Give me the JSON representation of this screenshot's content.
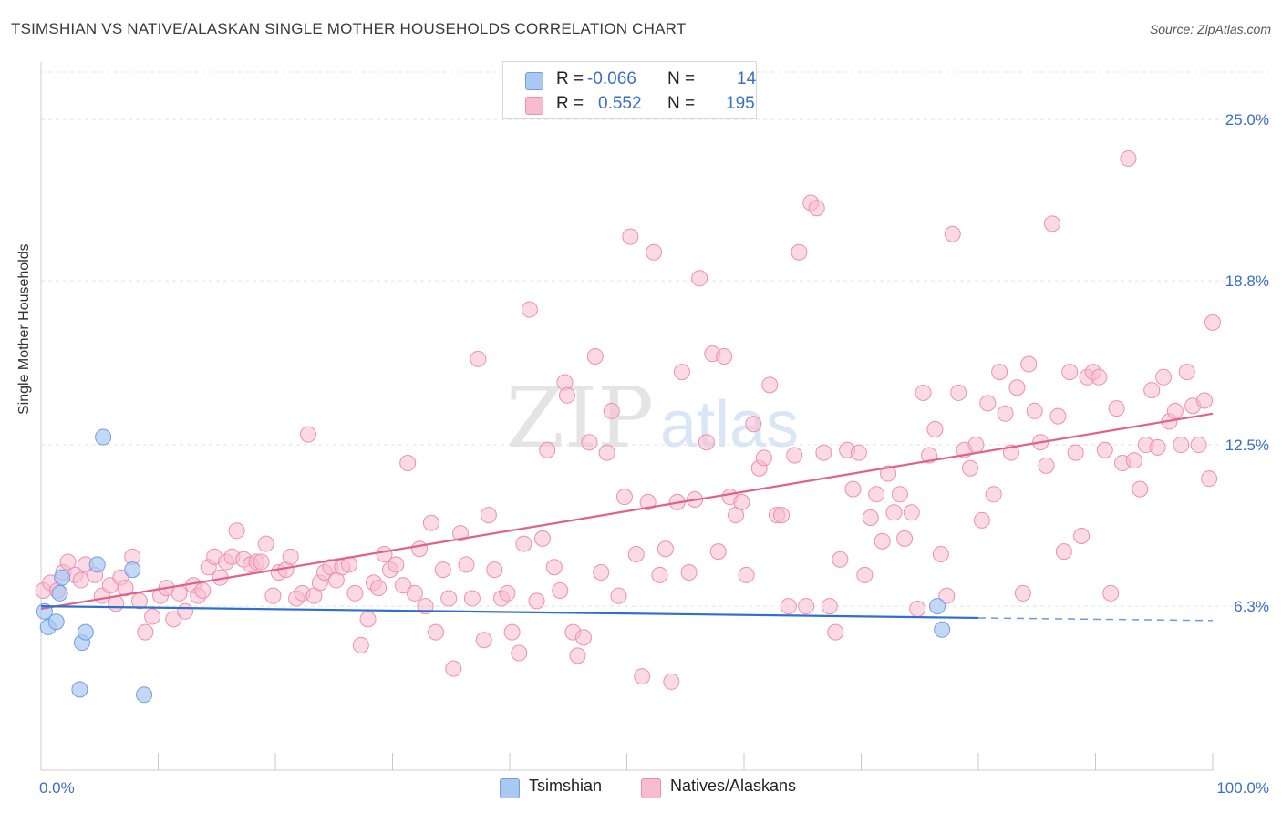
{
  "chart_data": {
    "type": "scatter",
    "title": "TSIMSHIAN VS NATIVE/ALASKAN SINGLE MOTHER HOUSEHOLDS CORRELATION CHART",
    "source": "Source: ZipAtlas.com",
    "ylabel": "Single Mother Households",
    "xlim": [
      0,
      100
    ],
    "ylim": [
      0,
      27
    ],
    "x_tick_labels": [
      "0.0%",
      "100.0%"
    ],
    "y_ticks": [
      {
        "value": 6.3,
        "label": "6.3%"
      },
      {
        "value": 12.5,
        "label": "12.5%"
      },
      {
        "value": 18.8,
        "label": "18.8%"
      },
      {
        "value": 25.0,
        "label": "25.0%"
      }
    ],
    "grid": true,
    "legend": {
      "placement": "top-center",
      "rows": [
        {
          "r_label": "R =",
          "r_value": "-0.066",
          "n_label": "N =",
          "n_value": "14"
        },
        {
          "r_label": "R =",
          "r_value": "0.552",
          "n_label": "N =",
          "n_value": "195"
        }
      ]
    },
    "colors": {
      "tsimshian_fill": "#a9c8f2",
      "tsimshian_stroke": "#6f9fe0",
      "tsimshian_line": "#2f6fcf",
      "natives_fill": "#f7bcd0",
      "natives_stroke": "#ee8fb0",
      "natives_line": "#e0608f",
      "tick_label": "#3a6fc4"
    },
    "series": [
      {
        "name": "Tsimshian",
        "trend": {
          "x0": 0,
          "y0": 6.3,
          "x1": 80,
          "y1": 5.85,
          "dash_to": 100,
          "dash_y": 5.75
        },
        "points": [
          [
            0.3,
            6.1
          ],
          [
            0.6,
            5.5
          ],
          [
            1.3,
            5.7
          ],
          [
            1.6,
            6.8
          ],
          [
            1.8,
            7.4
          ],
          [
            3.3,
            3.1
          ],
          [
            3.5,
            4.9
          ],
          [
            3.8,
            5.3
          ],
          [
            4.8,
            7.9
          ],
          [
            5.3,
            12.8
          ],
          [
            7.8,
            7.7
          ],
          [
            8.8,
            2.9
          ],
          [
            76.5,
            6.3
          ],
          [
            76.9,
            5.4
          ]
        ]
      },
      {
        "name": "Natives/Alaskans",
        "trend": {
          "x0": 0,
          "y0": 6.2,
          "x1": 100,
          "y1": 13.7
        },
        "points": [
          [
            0.2,
            6.9
          ],
          [
            0.8,
            7.2
          ],
          [
            1.4,
            6.9
          ],
          [
            1.9,
            7.6
          ],
          [
            2.3,
            8.0
          ],
          [
            2.9,
            7.5
          ],
          [
            3.4,
            7.3
          ],
          [
            3.8,
            7.9
          ],
          [
            4.6,
            7.5
          ],
          [
            5.2,
            6.7
          ],
          [
            5.9,
            7.1
          ],
          [
            6.4,
            6.4
          ],
          [
            6.8,
            7.4
          ],
          [
            7.2,
            7.0
          ],
          [
            7.8,
            8.2
          ],
          [
            8.4,
            6.5
          ],
          [
            8.9,
            5.3
          ],
          [
            9.5,
            5.9
          ],
          [
            10.2,
            6.7
          ],
          [
            10.7,
            7.0
          ],
          [
            11.3,
            5.8
          ],
          [
            11.8,
            6.8
          ],
          [
            12.3,
            6.1
          ],
          [
            13.0,
            7.1
          ],
          [
            13.4,
            6.7
          ],
          [
            13.8,
            6.9
          ],
          [
            14.3,
            7.8
          ],
          [
            14.8,
            8.2
          ],
          [
            15.3,
            7.4
          ],
          [
            15.8,
            8.0
          ],
          [
            16.3,
            8.2
          ],
          [
            16.7,
            9.2
          ],
          [
            17.3,
            8.1
          ],
          [
            17.9,
            7.9
          ],
          [
            18.4,
            8.0
          ],
          [
            18.8,
            8.0
          ],
          [
            19.2,
            8.7
          ],
          [
            19.8,
            6.7
          ],
          [
            20.3,
            7.6
          ],
          [
            20.9,
            7.7
          ],
          [
            21.3,
            8.2
          ],
          [
            21.8,
            6.6
          ],
          [
            22.3,
            6.8
          ],
          [
            22.8,
            12.9
          ],
          [
            23.3,
            6.7
          ],
          [
            23.8,
            7.2
          ],
          [
            24.2,
            7.6
          ],
          [
            24.7,
            7.8
          ],
          [
            25.2,
            7.3
          ],
          [
            25.7,
            7.8
          ],
          [
            26.3,
            7.9
          ],
          [
            26.8,
            6.8
          ],
          [
            27.3,
            4.8
          ],
          [
            27.9,
            5.8
          ],
          [
            28.4,
            7.2
          ],
          [
            28.8,
            7.0
          ],
          [
            29.3,
            8.3
          ],
          [
            29.8,
            7.7
          ],
          [
            30.3,
            7.9
          ],
          [
            30.9,
            7.1
          ],
          [
            31.3,
            11.8
          ],
          [
            31.9,
            6.8
          ],
          [
            32.3,
            8.5
          ],
          [
            32.8,
            6.3
          ],
          [
            33.3,
            9.5
          ],
          [
            33.7,
            5.3
          ],
          [
            34.3,
            7.7
          ],
          [
            34.8,
            6.6
          ],
          [
            35.2,
            3.9
          ],
          [
            35.8,
            9.1
          ],
          [
            36.3,
            7.9
          ],
          [
            36.8,
            6.6
          ],
          [
            37.3,
            15.8
          ],
          [
            37.8,
            5.0
          ],
          [
            38.2,
            9.8
          ],
          [
            38.7,
            7.7
          ],
          [
            39.3,
            6.6
          ],
          [
            39.8,
            6.8
          ],
          [
            40.2,
            5.3
          ],
          [
            40.8,
            4.5
          ],
          [
            41.2,
            8.7
          ],
          [
            41.7,
            17.7
          ],
          [
            42.3,
            6.5
          ],
          [
            42.8,
            8.9
          ],
          [
            43.2,
            12.3
          ],
          [
            43.8,
            7.8
          ],
          [
            44.3,
            6.9
          ],
          [
            44.7,
            14.9
          ],
          [
            44.9,
            14.4
          ],
          [
            45.4,
            5.3
          ],
          [
            45.8,
            4.4
          ],
          [
            46.3,
            5.1
          ],
          [
            46.8,
            12.6
          ],
          [
            47.3,
            15.9
          ],
          [
            47.8,
            7.6
          ],
          [
            48.3,
            12.2
          ],
          [
            48.7,
            13.8
          ],
          [
            49.3,
            6.7
          ],
          [
            49.8,
            10.5
          ],
          [
            50.3,
            20.5
          ],
          [
            50.8,
            8.3
          ],
          [
            51.3,
            3.6
          ],
          [
            51.8,
            10.3
          ],
          [
            52.3,
            19.9
          ],
          [
            52.8,
            7.5
          ],
          [
            53.3,
            8.5
          ],
          [
            53.8,
            3.4
          ],
          [
            54.3,
            10.3
          ],
          [
            54.7,
            15.3
          ],
          [
            55.3,
            7.6
          ],
          [
            55.8,
            10.4
          ],
          [
            56.2,
            18.9
          ],
          [
            56.8,
            12.6
          ],
          [
            57.3,
            16.0
          ],
          [
            57.8,
            8.4
          ],
          [
            58.3,
            15.9
          ],
          [
            58.8,
            10.5
          ],
          [
            59.3,
            9.8
          ],
          [
            59.8,
            10.3
          ],
          [
            60.2,
            7.5
          ],
          [
            60.8,
            13.3
          ],
          [
            61.3,
            11.6
          ],
          [
            61.7,
            12.0
          ],
          [
            62.2,
            14.8
          ],
          [
            62.8,
            9.8
          ],
          [
            63.2,
            9.8
          ],
          [
            63.8,
            6.3
          ],
          [
            64.3,
            12.1
          ],
          [
            64.7,
            19.9
          ],
          [
            65.3,
            6.3
          ],
          [
            65.7,
            21.8
          ],
          [
            66.2,
            21.6
          ],
          [
            66.8,
            12.2
          ],
          [
            67.3,
            6.3
          ],
          [
            67.8,
            5.3
          ],
          [
            68.2,
            8.1
          ],
          [
            68.8,
            12.3
          ],
          [
            69.3,
            10.8
          ],
          [
            69.8,
            12.2
          ],
          [
            70.3,
            7.5
          ],
          [
            70.8,
            9.7
          ],
          [
            71.3,
            10.6
          ],
          [
            71.8,
            8.8
          ],
          [
            72.3,
            11.4
          ],
          [
            72.8,
            9.9
          ],
          [
            73.3,
            10.6
          ],
          [
            73.7,
            8.9
          ],
          [
            74.3,
            9.9
          ],
          [
            74.8,
            6.2
          ],
          [
            75.3,
            14.5
          ],
          [
            75.8,
            12.1
          ],
          [
            76.3,
            13.1
          ],
          [
            76.8,
            8.3
          ],
          [
            77.3,
            6.7
          ],
          [
            77.8,
            20.6
          ],
          [
            78.3,
            14.5
          ],
          [
            78.8,
            12.3
          ],
          [
            79.3,
            11.6
          ],
          [
            79.8,
            12.5
          ],
          [
            80.3,
            9.6
          ],
          [
            80.8,
            14.1
          ],
          [
            81.3,
            10.6
          ],
          [
            81.8,
            15.3
          ],
          [
            82.3,
            13.7
          ],
          [
            82.8,
            12.2
          ],
          [
            83.3,
            14.7
          ],
          [
            83.8,
            6.8
          ],
          [
            84.3,
            15.6
          ],
          [
            84.8,
            13.8
          ],
          [
            85.3,
            12.6
          ],
          [
            85.8,
            11.7
          ],
          [
            86.3,
            21.0
          ],
          [
            86.8,
            13.6
          ],
          [
            87.3,
            8.4
          ],
          [
            87.8,
            15.3
          ],
          [
            88.3,
            12.2
          ],
          [
            88.8,
            9.0
          ],
          [
            89.3,
            15.1
          ],
          [
            89.8,
            15.3
          ],
          [
            90.3,
            15.1
          ],
          [
            90.8,
            12.3
          ],
          [
            91.3,
            6.8
          ],
          [
            91.8,
            13.9
          ],
          [
            92.3,
            11.8
          ],
          [
            92.8,
            23.5
          ],
          [
            93.3,
            11.9
          ],
          [
            93.8,
            10.8
          ],
          [
            94.3,
            12.5
          ],
          [
            94.8,
            14.6
          ],
          [
            95.3,
            12.4
          ],
          [
            95.8,
            15.1
          ],
          [
            96.3,
            13.4
          ],
          [
            96.8,
            13.8
          ],
          [
            97.3,
            12.5
          ],
          [
            97.8,
            15.3
          ],
          [
            98.3,
            14.0
          ],
          [
            98.8,
            12.5
          ],
          [
            99.3,
            14.2
          ],
          [
            99.7,
            11.2
          ],
          [
            100.0,
            17.2
          ]
        ]
      }
    ]
  },
  "legend_names": [
    "Tsimshian",
    "Natives/Alaskans"
  ]
}
